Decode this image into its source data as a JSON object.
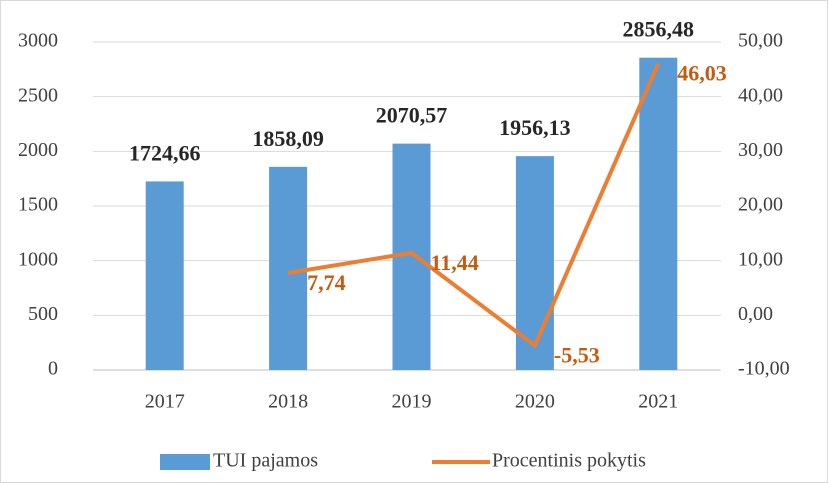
{
  "chart_data": {
    "type": "combo",
    "categories": [
      "2017",
      "2018",
      "2019",
      "2020",
      "2021"
    ],
    "series": [
      {
        "name": "TUI pajamos",
        "type": "bar",
        "color": "#5b9bd5",
        "values": [
          1724.66,
          1858.09,
          2070.57,
          1956.13,
          2856.48
        ],
        "value_labels": [
          "1724,66",
          "1858,09",
          "2070,57",
          "1956,13",
          "2856,48"
        ]
      },
      {
        "name": "Procentinis pokytis",
        "type": "line",
        "axis": "y2",
        "color": "#ed7d31",
        "values": [
          null,
          7.74,
          11.44,
          -5.53,
          46.03
        ],
        "value_labels": [
          null,
          "7,74",
          "11,44",
          "-5,53",
          "46,03"
        ]
      }
    ],
    "ylim": [
      0,
      3000
    ],
    "yticks": [
      0,
      500,
      1000,
      1500,
      2000,
      2500,
      3000
    ],
    "y2lim": [
      -10,
      50
    ],
    "y2ticks": [
      {
        "value": -10,
        "label": "-10,00"
      },
      {
        "value": 0,
        "label": "0,00"
      },
      {
        "value": 10,
        "label": "10,00"
      },
      {
        "value": 20,
        "label": "20,00"
      },
      {
        "value": 30,
        "label": "30,00"
      },
      {
        "value": 40,
        "label": "40,00"
      },
      {
        "value": 50,
        "label": "50,00"
      }
    ],
    "legend": "bottom"
  }
}
